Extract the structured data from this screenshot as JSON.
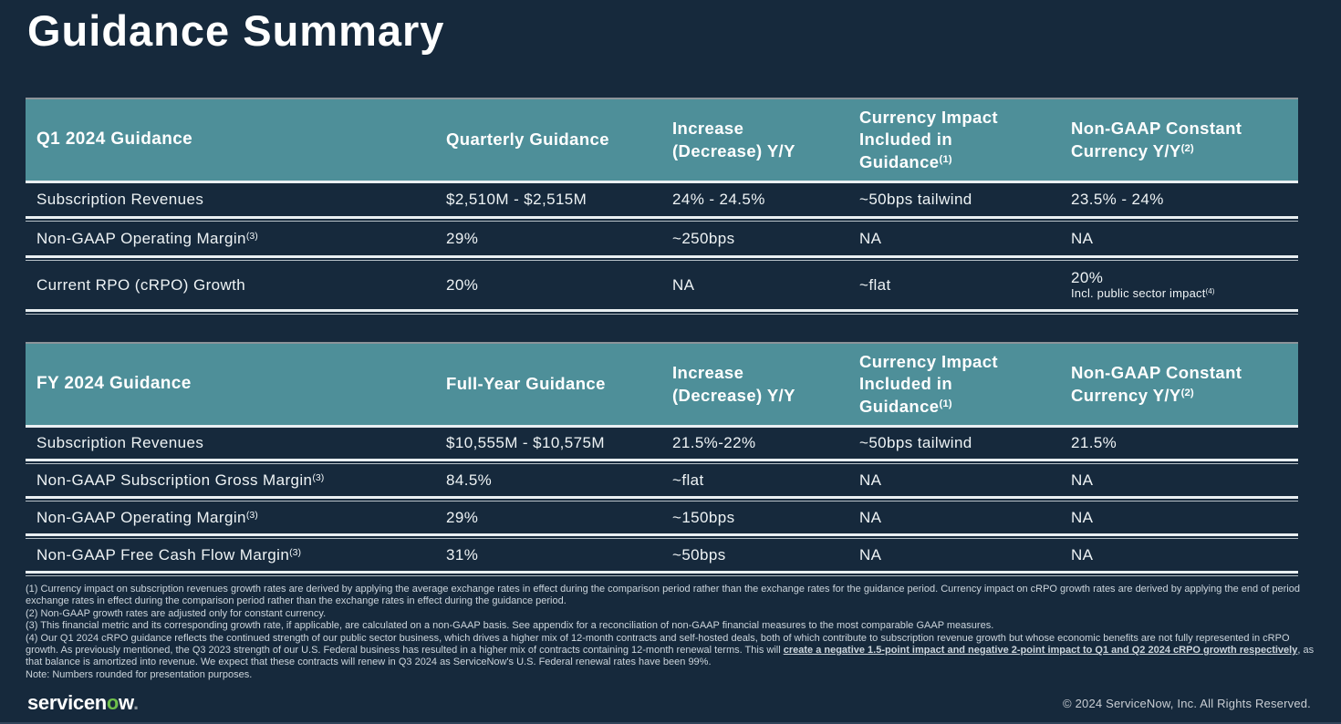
{
  "page": {
    "title": "Guidance Summary",
    "colors": {
      "background": "#16293C",
      "header_teal": "#4E8F99",
      "divider_light": "#E9EFF2",
      "logo_green": "#6FBF4B"
    }
  },
  "tables": [
    {
      "name": "Q1 2024 Guidance",
      "columns": [
        {
          "text": "Q1 2024 Guidance",
          "sup": ""
        },
        {
          "text": "Quarterly Guidance",
          "sup": ""
        },
        {
          "text": "Increase\n(Decrease) Y/Y",
          "sup": ""
        },
        {
          "text": "Currency Impact\nIncluded in\nGuidance",
          "sup": "(1)"
        },
        {
          "text": "Non-GAAP Constant\nCurrency Y/Y",
          "sup": "(2)"
        }
      ],
      "rows": [
        {
          "label": "Subscription Revenues",
          "label_sup": "",
          "c1": "$2,510M - $2,515M",
          "c2": "24% - 24.5%",
          "c3": "~50bps tailwind",
          "c4": "23.5% - 24%",
          "c4_note": "",
          "c4_note_sup": ""
        },
        {
          "label": "Non-GAAP Operating Margin",
          "label_sup": "(3)",
          "c1": "29%",
          "c2": "~250bps",
          "c3": "NA",
          "c4": "NA",
          "c4_note": "",
          "c4_note_sup": ""
        },
        {
          "label": "Current RPO (cRPO) Growth",
          "label_sup": "",
          "c1": "20%",
          "c2": "NA",
          "c3": "~flat",
          "c4": "20%",
          "c4_note": "Incl. public sector impact",
          "c4_note_sup": "(4)"
        }
      ]
    },
    {
      "name": "FY 2024 Guidance",
      "columns": [
        {
          "text": "FY 2024 Guidance",
          "sup": ""
        },
        {
          "text": "Full-Year Guidance",
          "sup": ""
        },
        {
          "text": "Increase\n(Decrease) Y/Y",
          "sup": ""
        },
        {
          "text": "Currency Impact\nIncluded in\nGuidance",
          "sup": "(1)"
        },
        {
          "text": "Non-GAAP Constant\nCurrency Y/Y",
          "sup": "(2)"
        }
      ],
      "rows": [
        {
          "label": "Subscription Revenues",
          "label_sup": "",
          "c1": "$10,555M - $10,575M",
          "c2": "21.5%-22%",
          "c3": "~50bps tailwind",
          "c4": "21.5%",
          "c4_note": "",
          "c4_note_sup": ""
        },
        {
          "label": "Non-GAAP Subscription Gross Margin",
          "label_sup": "(3)",
          "c1": "84.5%",
          "c2": "~flat",
          "c3": "NA",
          "c4": "NA",
          "c4_note": "",
          "c4_note_sup": ""
        },
        {
          "label": "Non-GAAP Operating Margin",
          "label_sup": "(3)",
          "c1": "29%",
          "c2": "~150bps",
          "c3": "NA",
          "c4": "NA",
          "c4_note": "",
          "c4_note_sup": ""
        },
        {
          "label": "Non-GAAP Free Cash Flow Margin",
          "label_sup": "(3)",
          "c1": "31%",
          "c2": "~50bps",
          "c3": "NA",
          "c4": "NA",
          "c4_note": "",
          "c4_note_sup": ""
        }
      ]
    }
  ],
  "footnotes": {
    "f1": "(1) Currency impact on subscription revenues growth rates are derived by applying the average exchange rates in effect during the comparison period rather than the exchange rates for the guidance period. Currency impact on cRPO growth rates are derived by applying the end of period exchange rates in effect during the comparison period rather than the exchange rates in effect during the guidance period.",
    "f2": "(2) Non-GAAP growth rates are adjusted only for constant currency.",
    "f3": "(3) This financial metric and its corresponding growth rate, if applicable, are calculated on a non-GAAP basis. See appendix for a reconciliation of non-GAAP financial measures to the most comparable GAAP measures.",
    "f4_pre": "(4) Our Q1 2024 cRPO guidance reflects the continued strength of our public sector business, which drives a higher mix of 12-month contracts and self-hosted deals, both of which contribute to subscription revenue growth but whose economic benefits are not fully represented in cRPO growth. As previously mentioned, the Q3 2023 strength of our U.S. Federal business has resulted in a higher mix of contracts containing 12-month renewal terms. This will ",
    "f4_emph": "create a negative 1.5-point impact and negative 2-point impact to Q1 and Q2 2024 cRPO growth respectively",
    "f4_post": ", as that balance is amortized into revenue. We expect that these contracts will renew in Q3 2024 as ServiceNow's U.S. Federal renewal rates have been 99%.",
    "note": "Note: Numbers rounded for presentation purposes."
  },
  "footer": {
    "logo_before": "servicen",
    "logo_green": "o",
    "logo_after": "w",
    "logo_dot": ".",
    "copyright": "© 2024 ServiceNow, Inc. All Rights Reserved."
  }
}
